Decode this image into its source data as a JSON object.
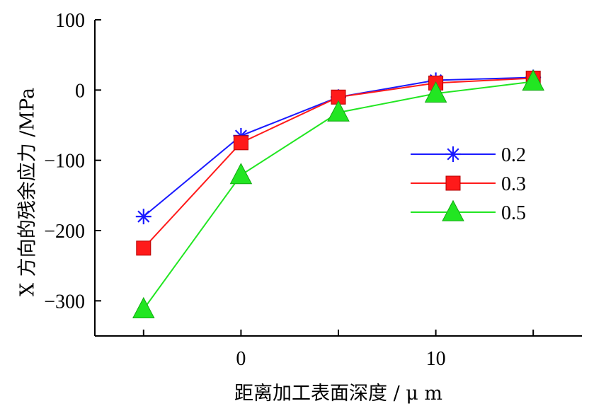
{
  "chart_data": {
    "type": "line",
    "title": "",
    "xlabel": "距离加工表面深度 / μ m",
    "ylabel": "X 方向的残余应力 /MPa",
    "x": [
      -5,
      0,
      5,
      10,
      15
    ],
    "xlim": [
      -7.5,
      17.5
    ],
    "ylim": [
      -350,
      100
    ],
    "xticks": [
      0,
      10
    ],
    "yticks": [
      -300,
      -200,
      -100,
      0,
      100
    ],
    "xtick_labels": [
      "0",
      "10"
    ],
    "ytick_labels": [
      "−300",
      "−200",
      "−100",
      "0",
      "100"
    ],
    "grid": false,
    "legend_position": "center-right",
    "series": [
      {
        "name": "0.2",
        "color": "#1a1aff",
        "marker": "asterisk",
        "values": [
          -180,
          -65,
          -10,
          14,
          18
        ]
      },
      {
        "name": "0.3",
        "color": "#ff1a1a",
        "marker": "square",
        "values": [
          -225,
          -75,
          -10,
          10,
          17
        ]
      },
      {
        "name": "0.5",
        "color": "#22e622",
        "marker": "triangle",
        "values": [
          -312,
          -121,
          -32,
          -5,
          12
        ]
      }
    ]
  }
}
